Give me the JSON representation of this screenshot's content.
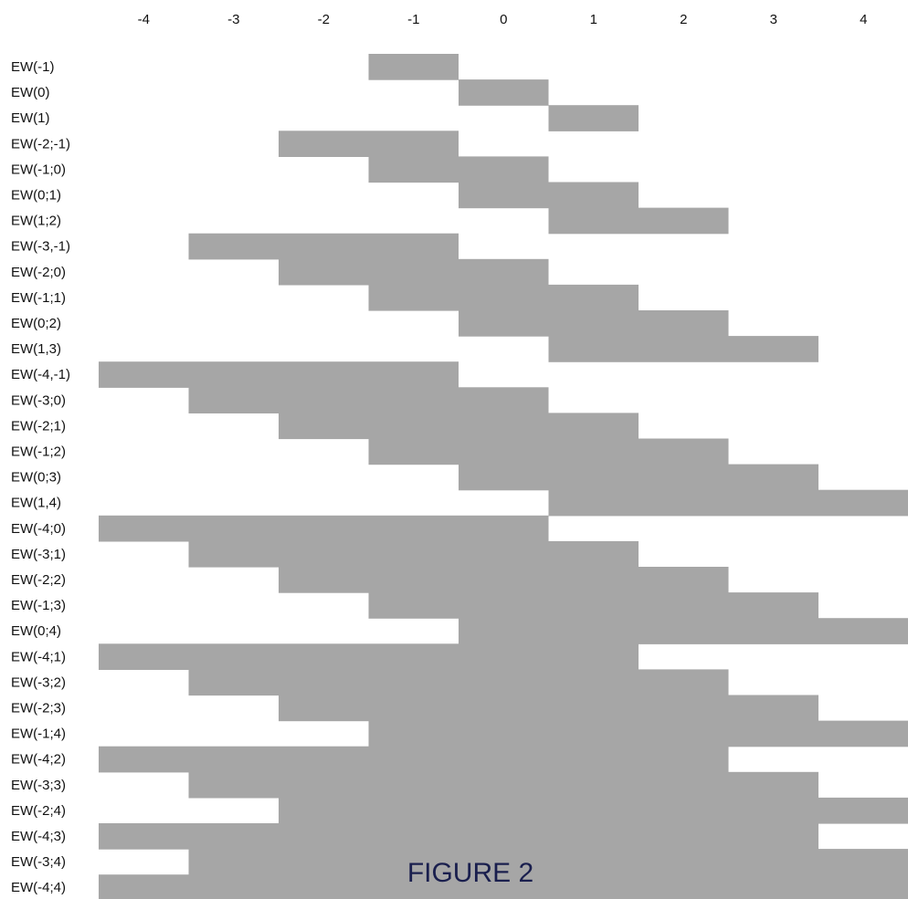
{
  "chart_data": {
    "type": "bar",
    "title": "",
    "xlabel": "",
    "ylabel": "",
    "xlim": [
      -4.5,
      4.5
    ],
    "x_ticks": [
      "-4",
      "-3",
      "-2",
      "-1",
      "0",
      "1",
      "2",
      "3",
      "4"
    ],
    "bar_color": "#a6a6a6",
    "rows": [
      {
        "label": "EW(-1)",
        "start": -1,
        "end": -1
      },
      {
        "label": "EW(0)",
        "start": 0,
        "end": 0
      },
      {
        "label": "EW(1)",
        "start": 1,
        "end": 1
      },
      {
        "label": "EW(-2;-1)",
        "start": -2,
        "end": -1
      },
      {
        "label": "EW(-1;0)",
        "start": -1,
        "end": 0
      },
      {
        "label": "EW(0;1)",
        "start": 0,
        "end": 1
      },
      {
        "label": "EW(1;2)",
        "start": 1,
        "end": 2
      },
      {
        "label": "EW(-3,-1)",
        "start": -3,
        "end": -1
      },
      {
        "label": "EW(-2;0)",
        "start": -2,
        "end": 0
      },
      {
        "label": "EW(-1;1)",
        "start": -1,
        "end": 1
      },
      {
        "label": "EW(0;2)",
        "start": 0,
        "end": 2
      },
      {
        "label": "EW(1,3)",
        "start": 1,
        "end": 3
      },
      {
        "label": "EW(-4,-1)",
        "start": -4,
        "end": -1
      },
      {
        "label": "EW(-3;0)",
        "start": -3,
        "end": 0
      },
      {
        "label": "EW(-2;1)",
        "start": -2,
        "end": 1
      },
      {
        "label": "EW(-1;2)",
        "start": -1,
        "end": 2
      },
      {
        "label": "EW(0;3)",
        "start": 0,
        "end": 3
      },
      {
        "label": "EW(1,4)",
        "start": 1,
        "end": 4
      },
      {
        "label": "EW(-4;0)",
        "start": -4,
        "end": 0
      },
      {
        "label": "EW(-3;1)",
        "start": -3,
        "end": 1
      },
      {
        "label": "EW(-2;2)",
        "start": -2,
        "end": 2
      },
      {
        "label": "EW(-1;3)",
        "start": -1,
        "end": 3
      },
      {
        "label": "EW(0;4)",
        "start": 0,
        "end": 4
      },
      {
        "label": "EW(-4;1)",
        "start": -4,
        "end": 1
      },
      {
        "label": "EW(-3;2)",
        "start": -3,
        "end": 2
      },
      {
        "label": "EW(-2;3)",
        "start": -2,
        "end": 3
      },
      {
        "label": "EW(-1;4)",
        "start": -1,
        "end": 4
      },
      {
        "label": "EW(-4;2)",
        "start": -4,
        "end": 2
      },
      {
        "label": "EW(-3;3)",
        "start": -3,
        "end": 3
      },
      {
        "label": "EW(-2;4)",
        "start": -2,
        "end": 4
      },
      {
        "label": "EW(-4;3)",
        "start": -4,
        "end": 3
      },
      {
        "label": "EW(-3;4)",
        "start": -3,
        "end": 4
      },
      {
        "label": "EW(-4;4)",
        "start": -4,
        "end": 4
      }
    ],
    "caption": "FIGURE 2",
    "caption_color": "#1a1f4e"
  }
}
